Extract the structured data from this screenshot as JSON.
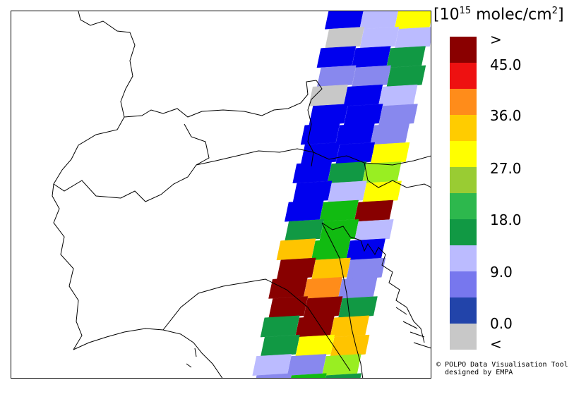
{
  "legend": {
    "unit_prefix": "[10",
    "unit_exp": "15",
    "unit_suffix": " molec/cm",
    "unit_sq": "2",
    "unit_close": "]",
    "colors": [
      "#8a0000",
      "#ee1111",
      "#ff8c1a",
      "#ffcc00",
      "#ffff00",
      "#99cc33",
      "#2db84d",
      "#119944",
      "#bbbbff",
      "#7777ee",
      "#2244aa",
      "#c8c8c8"
    ],
    "labels": [
      ">",
      "45.0",
      "36.0",
      "27.0",
      "18.0",
      "9.0",
      "0.0",
      "<"
    ]
  },
  "credit": {
    "line1": "© POLPO Data Visualisation Tool",
    "line2": "designed by EMPA"
  },
  "swath": {
    "palette": {
      "maroon": "#880000",
      "orange": "#ff8c1a",
      "amber": "#ffc400",
      "yellow": "#ffff00",
      "lime": "#99ee22",
      "green": "#11bb11",
      "darkgreen": "#119944",
      "lavender": "#bbbbff",
      "periwinkle": "#8888ee",
      "blue": "#0000ee",
      "gray": "#c8c8c8"
    },
    "rows": [
      [
        "blue",
        "lavender",
        "yellow"
      ],
      [
        "gray",
        "lavender",
        "lavender"
      ],
      [
        "blue",
        "blue",
        "darkgreen"
      ],
      [
        "periwinkle",
        "periwinkle",
        "darkgreen"
      ],
      [
        "gray",
        "blue",
        "lavender"
      ],
      [
        "blue",
        "blue",
        "periwinkle"
      ],
      [
        "blue",
        "blue",
        "periwinkle"
      ],
      [
        "blue",
        "blue",
        "yellow"
      ],
      [
        "blue",
        "darkgreen",
        "lime"
      ],
      [
        "blue",
        "lavender",
        "yellow"
      ],
      [
        "blue",
        "green",
        "maroon"
      ],
      [
        "darkgreen",
        "green",
        "lavender"
      ],
      [
        "amber",
        "green",
        "blue"
      ],
      [
        "maroon",
        "amber",
        "periwinkle"
      ],
      [
        "maroon",
        "orange",
        "periwinkle"
      ],
      [
        "maroon",
        "maroon",
        "darkgreen"
      ],
      [
        "darkgreen",
        "maroon",
        "amber"
      ],
      [
        "darkgreen",
        "yellow",
        "amber"
      ],
      [
        "lavender",
        "periwinkle",
        "lime"
      ],
      [
        "periwinkle",
        "green",
        "darkgreen"
      ]
    ]
  }
}
